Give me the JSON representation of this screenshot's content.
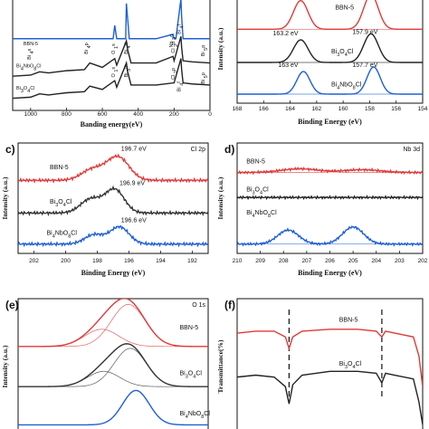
{
  "chart_data": [
    {
      "id": "a",
      "type": "line",
      "panel_label": "",
      "corner_label": "",
      "xlabel": "Banding energy(eV)",
      "ylabel": "",
      "xlim": [
        1100,
        0
      ],
      "xticks": [
        1000,
        800,
        600,
        400,
        200,
        0
      ],
      "series": [
        {
          "name": "BBN-5",
          "color": "#1f5fd6",
          "offset": 2,
          "x": [
            1100,
            1000,
            900,
            800,
            700,
            600,
            540,
            531,
            520,
            470,
            466,
            459,
            450,
            300,
            206,
            200,
            190,
            162,
            158,
            150,
            100,
            20,
            0
          ],
          "y": [
            3.0,
            3.0,
            3.0,
            3.0,
            3.0,
            3.0,
            3.0,
            3.6,
            3.0,
            3.0,
            4.6,
            3.9,
            3.0,
            3.0,
            3.2,
            3.0,
            3.0,
            4.8,
            4.0,
            3.0,
            3.0,
            3.0,
            3.0
          ]
        },
        {
          "name": "Bi4NbO8Cl",
          "color": "#222222",
          "offset": 1,
          "x": [
            1100,
            1000,
            950,
            900,
            850,
            800,
            700,
            670,
            600,
            531,
            520,
            466,
            459,
            440,
            300,
            206,
            200,
            162,
            158,
            150,
            100,
            0
          ],
          "y": [
            1.3,
            1.35,
            1.5,
            1.45,
            1.5,
            1.55,
            1.6,
            1.9,
            1.7,
            2.1,
            1.8,
            2.9,
            2.5,
            1.9,
            1.9,
            2.2,
            2.0,
            3.1,
            2.6,
            2.0,
            1.95,
            1.9
          ]
        },
        {
          "name": "Bi3O4Cl",
          "color": "#222222",
          "offset": 0,
          "x": [
            1100,
            1000,
            950,
            900,
            850,
            800,
            700,
            670,
            600,
            531,
            520,
            466,
            459,
            440,
            300,
            200,
            162,
            158,
            150,
            100,
            0
          ],
          "y": [
            0.3,
            0.35,
            0.5,
            0.45,
            0.5,
            0.55,
            0.6,
            0.85,
            0.7,
            1.1,
            0.8,
            1.9,
            1.5,
            0.9,
            0.9,
            1.0,
            2.1,
            1.6,
            1.0,
            0.95,
            0.9
          ]
        }
      ],
      "annotations": [
        {
          "text": "BBN-5",
          "x": 1040,
          "y": 2.7
        },
        {
          "text": "Bi 4s",
          "x": 1000,
          "y": 2.05
        },
        {
          "text": "Bi 4p",
          "x": 680,
          "y": 2.3
        },
        {
          "text": "O 1s",
          "x": 531,
          "y": 2.3
        },
        {
          "text": "Bi 4d",
          "x": 460,
          "y": 2.3
        },
        {
          "text": "Nb 3d",
          "x": 206,
          "y": 2.6
        },
        {
          "text": "Cl 2p",
          "x": 198,
          "y": 2.35
        },
        {
          "text": "Bi 4f",
          "x": 163,
          "y": 3.2
        },
        {
          "text": "Bi 5p",
          "x": 30,
          "y": 2.2
        },
        {
          "text": "Bi4NbO8Cl",
          "x": 1080,
          "y": 1.7
        },
        {
          "text": "O 1s",
          "x": 531,
          "y": 1.25
        },
        {
          "text": "Bi 3d",
          "x": 460,
          "y": 1.25
        },
        {
          "text": "Cl 2p",
          "x": 198,
          "y": 1.15
        },
        {
          "text": "Bi 4f",
          "x": 163,
          "y": 0.6
        },
        {
          "text": "Bi 5p",
          "x": 30,
          "y": 0.95
        },
        {
          "text": "Bi3O4Cl",
          "x": 1080,
          "y": 0.7
        }
      ]
    },
    {
      "id": "b",
      "type": "line",
      "panel_label": "",
      "corner_label": "",
      "xlabel": "Binding Energy (eV)",
      "ylabel": "Intensity (a.u.)",
      "xlim": [
        168,
        154
      ],
      "xticks": [
        168,
        166,
        164,
        162,
        160,
        158,
        156,
        154
      ],
      "series": [
        {
          "name": "BBN-5",
          "color": "#e03a3a",
          "offset": 2,
          "peaks": [
            [
              163.2,
              0.95,
              0.55
            ],
            [
              157.9,
              1.15,
              0.55
            ]
          ],
          "base": 2.2
        },
        {
          "name": "Bi3O4Cl",
          "color": "#222222",
          "offset": 1,
          "peaks": [
            [
              163.2,
              0.75,
              0.55
            ],
            [
              157.9,
              0.95,
              0.55
            ]
          ],
          "base": 1.1
        },
        {
          "name": "Bi4NbO8Cl",
          "color": "#1f5fd6",
          "offset": 0,
          "peaks": [
            [
              163.0,
              0.75,
              0.5
            ],
            [
              157.7,
              0.9,
              0.5
            ]
          ],
          "base": 0.05
        }
      ],
      "annotations": [
        {
          "text": "BBN-5",
          "x": 160.6,
          "y": 2.85
        },
        {
          "text": "163.2 eV",
          "x": 165.3,
          "y": 2.0
        },
        {
          "text": "157.9 eV",
          "x": 159.3,
          "y": 2.05
        },
        {
          "text": "Bi3O4Cl",
          "x": 160.9,
          "y": 1.4
        },
        {
          "text": "163 eV",
          "x": 164.9,
          "y": 0.95
        },
        {
          "text": "157.7 eV",
          "x": 159.3,
          "y": 0.95
        },
        {
          "text": "Bi4NbO8Cl",
          "x": 160.9,
          "y": 0.3
        }
      ]
    },
    {
      "id": "c",
      "type": "line",
      "panel_label": "c)",
      "corner_label": "Cl 2p",
      "xlabel": "Binding Energy (eV)",
      "ylabel": "Intensity (a.u.)",
      "xlim": [
        203,
        191
      ],
      "xticks": [
        202,
        200,
        198,
        196,
        194,
        192
      ],
      "series": [
        {
          "name": "BBN-5",
          "color": "#e03a3a",
          "offset": 2,
          "peaks": [
            [
              196.7,
              0.75,
              0.7
            ],
            [
              198.3,
              0.35,
              0.7
            ]
          ],
          "base": 2.1
        },
        {
          "name": "Bi3O4Cl",
          "color": "#333333",
          "offset": 1,
          "peaks": [
            [
              196.9,
              0.75,
              0.6
            ],
            [
              198.4,
              0.45,
              0.65
            ]
          ],
          "base": 1.05
        },
        {
          "name": "Bi4NbO8Cl",
          "color": "#1f5fd6",
          "offset": 0,
          "peaks": [
            [
              196.6,
              0.55,
              0.6
            ],
            [
              198.2,
              0.3,
              0.6
            ]
          ],
          "base": 0.05
        }
      ],
      "annotations": [
        {
          "text": "196.7 eV",
          "x": 196.5,
          "y": 3.05
        },
        {
          "text": "BBN-5",
          "x": 201.0,
          "y": 2.45
        },
        {
          "text": "196.9 eV",
          "x": 196.6,
          "y": 1.95
        },
        {
          "text": "Bi3O4Cl",
          "x": 201.0,
          "y": 1.35
        },
        {
          "text": "196.6 eV",
          "x": 196.5,
          "y": 0.75
        },
        {
          "text": "Bi4NbO8Cl",
          "x": 201.2,
          "y": 0.35
        }
      ]
    },
    {
      "id": "d",
      "type": "line",
      "panel_label": "d)",
      "corner_label": "Nb 3d",
      "xlabel": "Binding Energy (eV)",
      "ylabel": "Intensity (a.u.)",
      "xlim": [
        210,
        202
      ],
      "xticks": [
        210,
        209,
        208,
        207,
        206,
        205,
        204,
        203,
        202
      ],
      "tick_labels": [
        "210",
        "209",
        "208",
        "207",
        "206",
        "205",
        "204",
        "203",
        "202"
      ],
      "series": [
        {
          "name": "BBN-5",
          "color": "#e03a3a",
          "offset": 2,
          "peaks": [
            [
              207.3,
              0.12,
              0.8
            ],
            [
              204.6,
              0.09,
              0.8
            ]
          ],
          "base": 2.35
        },
        {
          "name": "Bi3O4Cl",
          "color": "#222222",
          "offset": 1,
          "peaks": [],
          "base": 1.55
        },
        {
          "name": "Bi4NbO8Cl",
          "color": "#1f5fd6",
          "offset": 0,
          "peaks": [
            [
              207.8,
              0.45,
              0.45
            ],
            [
              205.0,
              0.55,
              0.45
            ]
          ],
          "base": 0.05
        }
      ],
      "annotations": [
        {
          "text": "BBN-5",
          "x": 209.6,
          "y": 2.65
        },
        {
          "text": "Bi3O4Cl",
          "x": 209.6,
          "y": 1.75
        },
        {
          "text": "Bi4NbO8Cl",
          "x": 209.6,
          "y": 1.0
        }
      ]
    },
    {
      "id": "e",
      "type": "line",
      "panel_label": "(e)",
      "corner_label": "O 1s",
      "xlabel": "",
      "ylabel": "Intensity (a.u.)",
      "xlim": [
        536,
        526
      ],
      "xticks": [],
      "series": [
        {
          "name": "BBN-5",
          "color": "#e03a3a",
          "offset": 2,
          "peaks": [
            [
              530.2,
              1.1,
              0.9
            ],
            [
              531.6,
              0.45,
              0.9
            ]
          ],
          "base": 2.05
        },
        {
          "name": "Bi3O4Cl",
          "color": "#333333",
          "offset": 1,
          "peaks": [
            [
              530.1,
              1.0,
              0.85
            ],
            [
              531.5,
              0.4,
              0.85
            ]
          ],
          "base": 1.0
        },
        {
          "name": "Bi4NbO8Cl",
          "color": "#1f5fd6",
          "offset": 0,
          "peaks": [
            [
              529.8,
              0.9,
              0.7
            ]
          ],
          "base": 0.0
        }
      ],
      "annotations": [
        {
          "text": "BBN-5",
          "x": 527.5,
          "y": 2.5
        },
        {
          "text": "Bi3O4Cl",
          "x": 527.5,
          "y": 1.3
        },
        {
          "text": "Bi4NbO8Cl",
          "x": 527.5,
          "y": 0.25
        }
      ]
    },
    {
      "id": "f",
      "type": "line",
      "panel_label": "(f)",
      "corner_label": "",
      "xlabel": "",
      "ylabel": "Transmittance(%)",
      "xlim": [
        0,
        100
      ],
      "xticks": [],
      "series": [
        {
          "name": "BBN-5",
          "color": "#e03a3a",
          "offset": 1,
          "x": [
            0,
            10,
            20,
            26,
            28,
            30,
            35,
            50,
            65,
            75,
            78,
            80,
            85,
            95,
            98,
            100
          ],
          "y": [
            2.4,
            2.45,
            2.45,
            2.3,
            2.0,
            2.3,
            2.45,
            2.5,
            2.5,
            2.45,
            2.3,
            2.45,
            2.4,
            2.3,
            1.8,
            1.0
          ]
        },
        {
          "name": "Bi3O4Cl",
          "color": "#222222",
          "offset": 0,
          "x": [
            0,
            10,
            20,
            26,
            28,
            30,
            35,
            50,
            65,
            75,
            78,
            80,
            85,
            95,
            98,
            100
          ],
          "y": [
            1.25,
            1.3,
            1.25,
            1.0,
            0.55,
            1.05,
            1.3,
            1.4,
            1.4,
            1.35,
            1.1,
            1.35,
            1.3,
            1.2,
            0.6,
            0.0
          ]
        }
      ],
      "markers": [
        28,
        78
      ],
      "annotations": [
        {
          "text": "BBN-5",
          "x": 55,
          "y": 2.7
        },
        {
          "text": "Bi3O4Cl",
          "x": 55,
          "y": 1.55
        }
      ]
    }
  ]
}
